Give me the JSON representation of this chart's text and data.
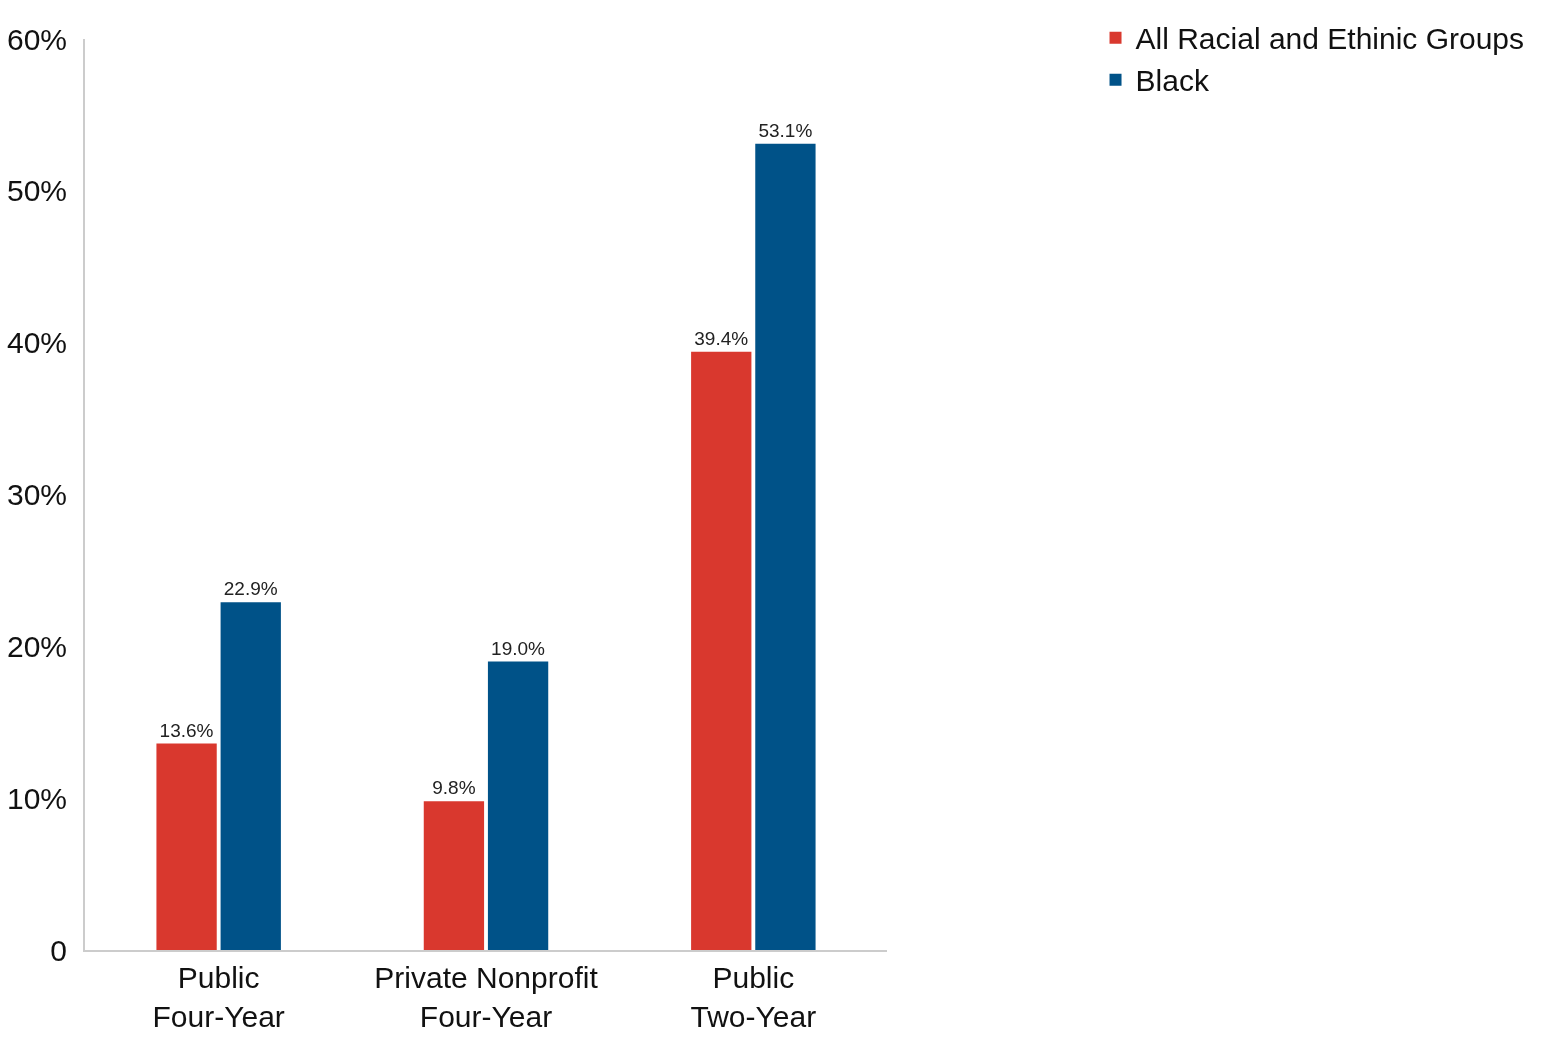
{
  "chart_data": {
    "type": "bar",
    "categories": [
      "Public Four-Year",
      "Private Nonprofit Four-Year",
      "Public Two-Year"
    ],
    "series": [
      {
        "name": "All Racial and Ethinic Groups",
        "color": "#d9382e",
        "values": [
          13.6,
          9.8,
          39.4
        ],
        "value_labels": [
          "13.6%",
          "9.8%",
          "39.4%"
        ]
      },
      {
        "name": "Black",
        "color": "#005288",
        "values": [
          22.9,
          19.0,
          53.1
        ],
        "value_labels": [
          "22.9%",
          "19.0%",
          "53.1%"
        ]
      }
    ],
    "ylim": [
      0,
      60
    ],
    "yticks": [
      0,
      {
        "value": 10,
        "label": "10%"
      },
      {
        "value": 20,
        "label": "20%"
      },
      {
        "value": 30,
        "label": "30%"
      },
      {
        "value": 40,
        "label": "40%"
      },
      {
        "value": 50,
        "label": "50%"
      },
      {
        "value": 60,
        "label": "60%"
      }
    ],
    "grid": false,
    "legend": "top right"
  }
}
